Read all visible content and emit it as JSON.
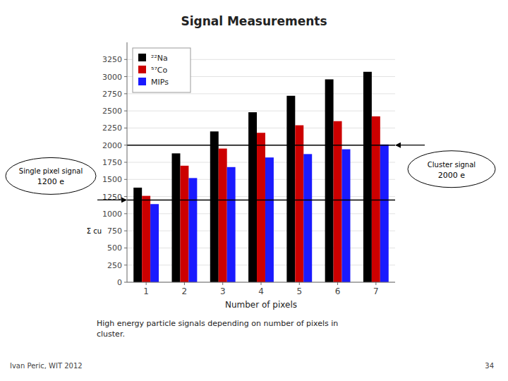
{
  "chart_data": {
    "type": "bar",
    "title": "Signal Measurements",
    "x_label": "Number of pixels",
    "categories": [
      1,
      2,
      3,
      4,
      5,
      6,
      7
    ],
    "series": [
      {
        "name": "²²Na",
        "color": "#000000",
        "values": [
          1380,
          1880,
          2200,
          2480,
          2720,
          2960,
          3070
        ]
      },
      {
        "name": "⁵⁷Co",
        "color": "#cc0000",
        "values": [
          1260,
          1700,
          1950,
          2180,
          2290,
          2350,
          2420
        ]
      },
      {
        "name": "MIPs",
        "color": "#1a1aff",
        "values": [
          1140,
          1520,
          1680,
          1820,
          1870,
          1940,
          2010
        ]
      }
    ],
    "ylim": [
      0,
      3500
    ],
    "yticks": [
      0,
      250,
      500,
      750,
      1000,
      1250,
      1500,
      1750,
      2000,
      2250,
      2500,
      2750,
      3000,
      3250
    ],
    "grid": true,
    "legend": "upper left",
    "annotations": [
      {
        "text": "Cluster signal",
        "label": "2000 e",
        "y": 2000
      },
      {
        "text": "Single pixel signal",
        "label": "1200 e",
        "y": 1200
      },
      {
        "text": "Σ cu",
        "y": 750
      }
    ],
    "caption": "High energy particle signals depending on number of pixels in\ncluster.",
    "footer": {
      "left": "Ivan Peric, WIT 2012",
      "right": "34"
    }
  }
}
